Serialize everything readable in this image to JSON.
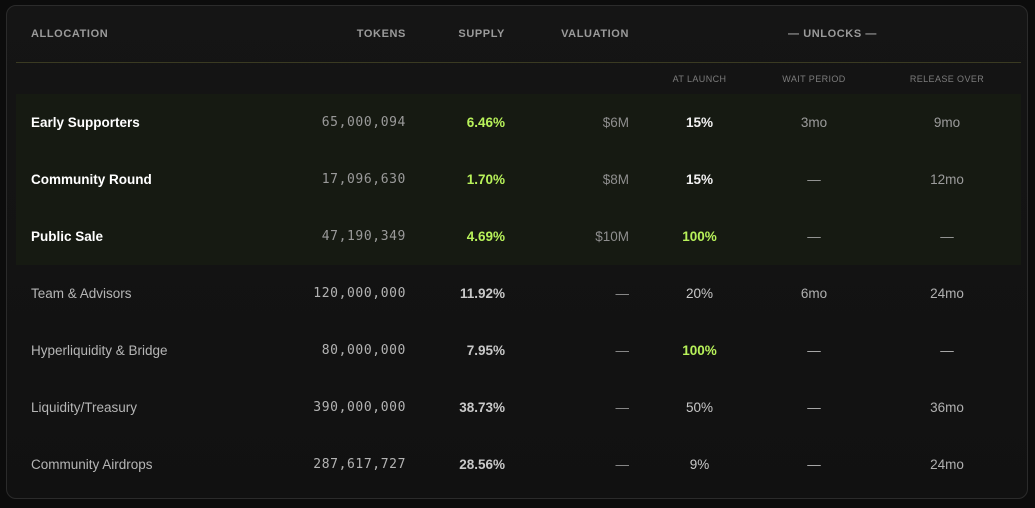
{
  "headers": {
    "allocation": "ALLOCATION",
    "tokens": "TOKENS",
    "supply": "SUPPLY",
    "valuation": "VALUATION",
    "unlocks": "— UNLOCKS —",
    "at_launch": "AT LAUNCH",
    "wait_period": "WAIT PERIOD",
    "release_over": "RELEASE OVER"
  },
  "colors": {
    "accent_green": "#b8f25a",
    "highlight_row_bg": "#161a12"
  },
  "rows": [
    {
      "name": "Early Supporters",
      "tokens": "65,000,094",
      "supply": "6.46%",
      "valuation": "$6M",
      "at_launch": "15%",
      "wait": "3mo",
      "release": "9mo",
      "highlight": true,
      "supply_green": true,
      "launch_green": false
    },
    {
      "name": "Community Round",
      "tokens": "17,096,630",
      "supply": "1.70%",
      "valuation": "$8M",
      "at_launch": "15%",
      "wait": "—",
      "release": "12mo",
      "highlight": true,
      "supply_green": true,
      "launch_green": false
    },
    {
      "name": "Public Sale",
      "tokens": "47,190,349",
      "supply": "4.69%",
      "valuation": "$10M",
      "at_launch": "100%",
      "wait": "—",
      "release": "—",
      "highlight": true,
      "supply_green": true,
      "launch_green": true
    },
    {
      "name": "Team & Advisors",
      "tokens": "120,000,000",
      "supply": "11.92%",
      "valuation": "—",
      "at_launch": "20%",
      "wait": "6mo",
      "release": "24mo",
      "highlight": false,
      "supply_green": false,
      "launch_green": false
    },
    {
      "name": "Hyperliquidity & Bridge",
      "tokens": "80,000,000",
      "supply": "7.95%",
      "valuation": "—",
      "at_launch": "100%",
      "wait": "—",
      "release": "—",
      "highlight": false,
      "supply_green": false,
      "launch_green": true
    },
    {
      "name": "Liquidity/Treasury",
      "tokens": "390,000,000",
      "supply": "38.73%",
      "valuation": "—",
      "at_launch": "50%",
      "wait": "—",
      "release": "36mo",
      "highlight": false,
      "supply_green": false,
      "launch_green": false
    },
    {
      "name": "Community Airdrops",
      "tokens": "287,617,727",
      "supply": "28.56%",
      "valuation": "—",
      "at_launch": "9%",
      "wait": "—",
      "release": "24mo",
      "highlight": false,
      "supply_green": false,
      "launch_green": false
    }
  ]
}
